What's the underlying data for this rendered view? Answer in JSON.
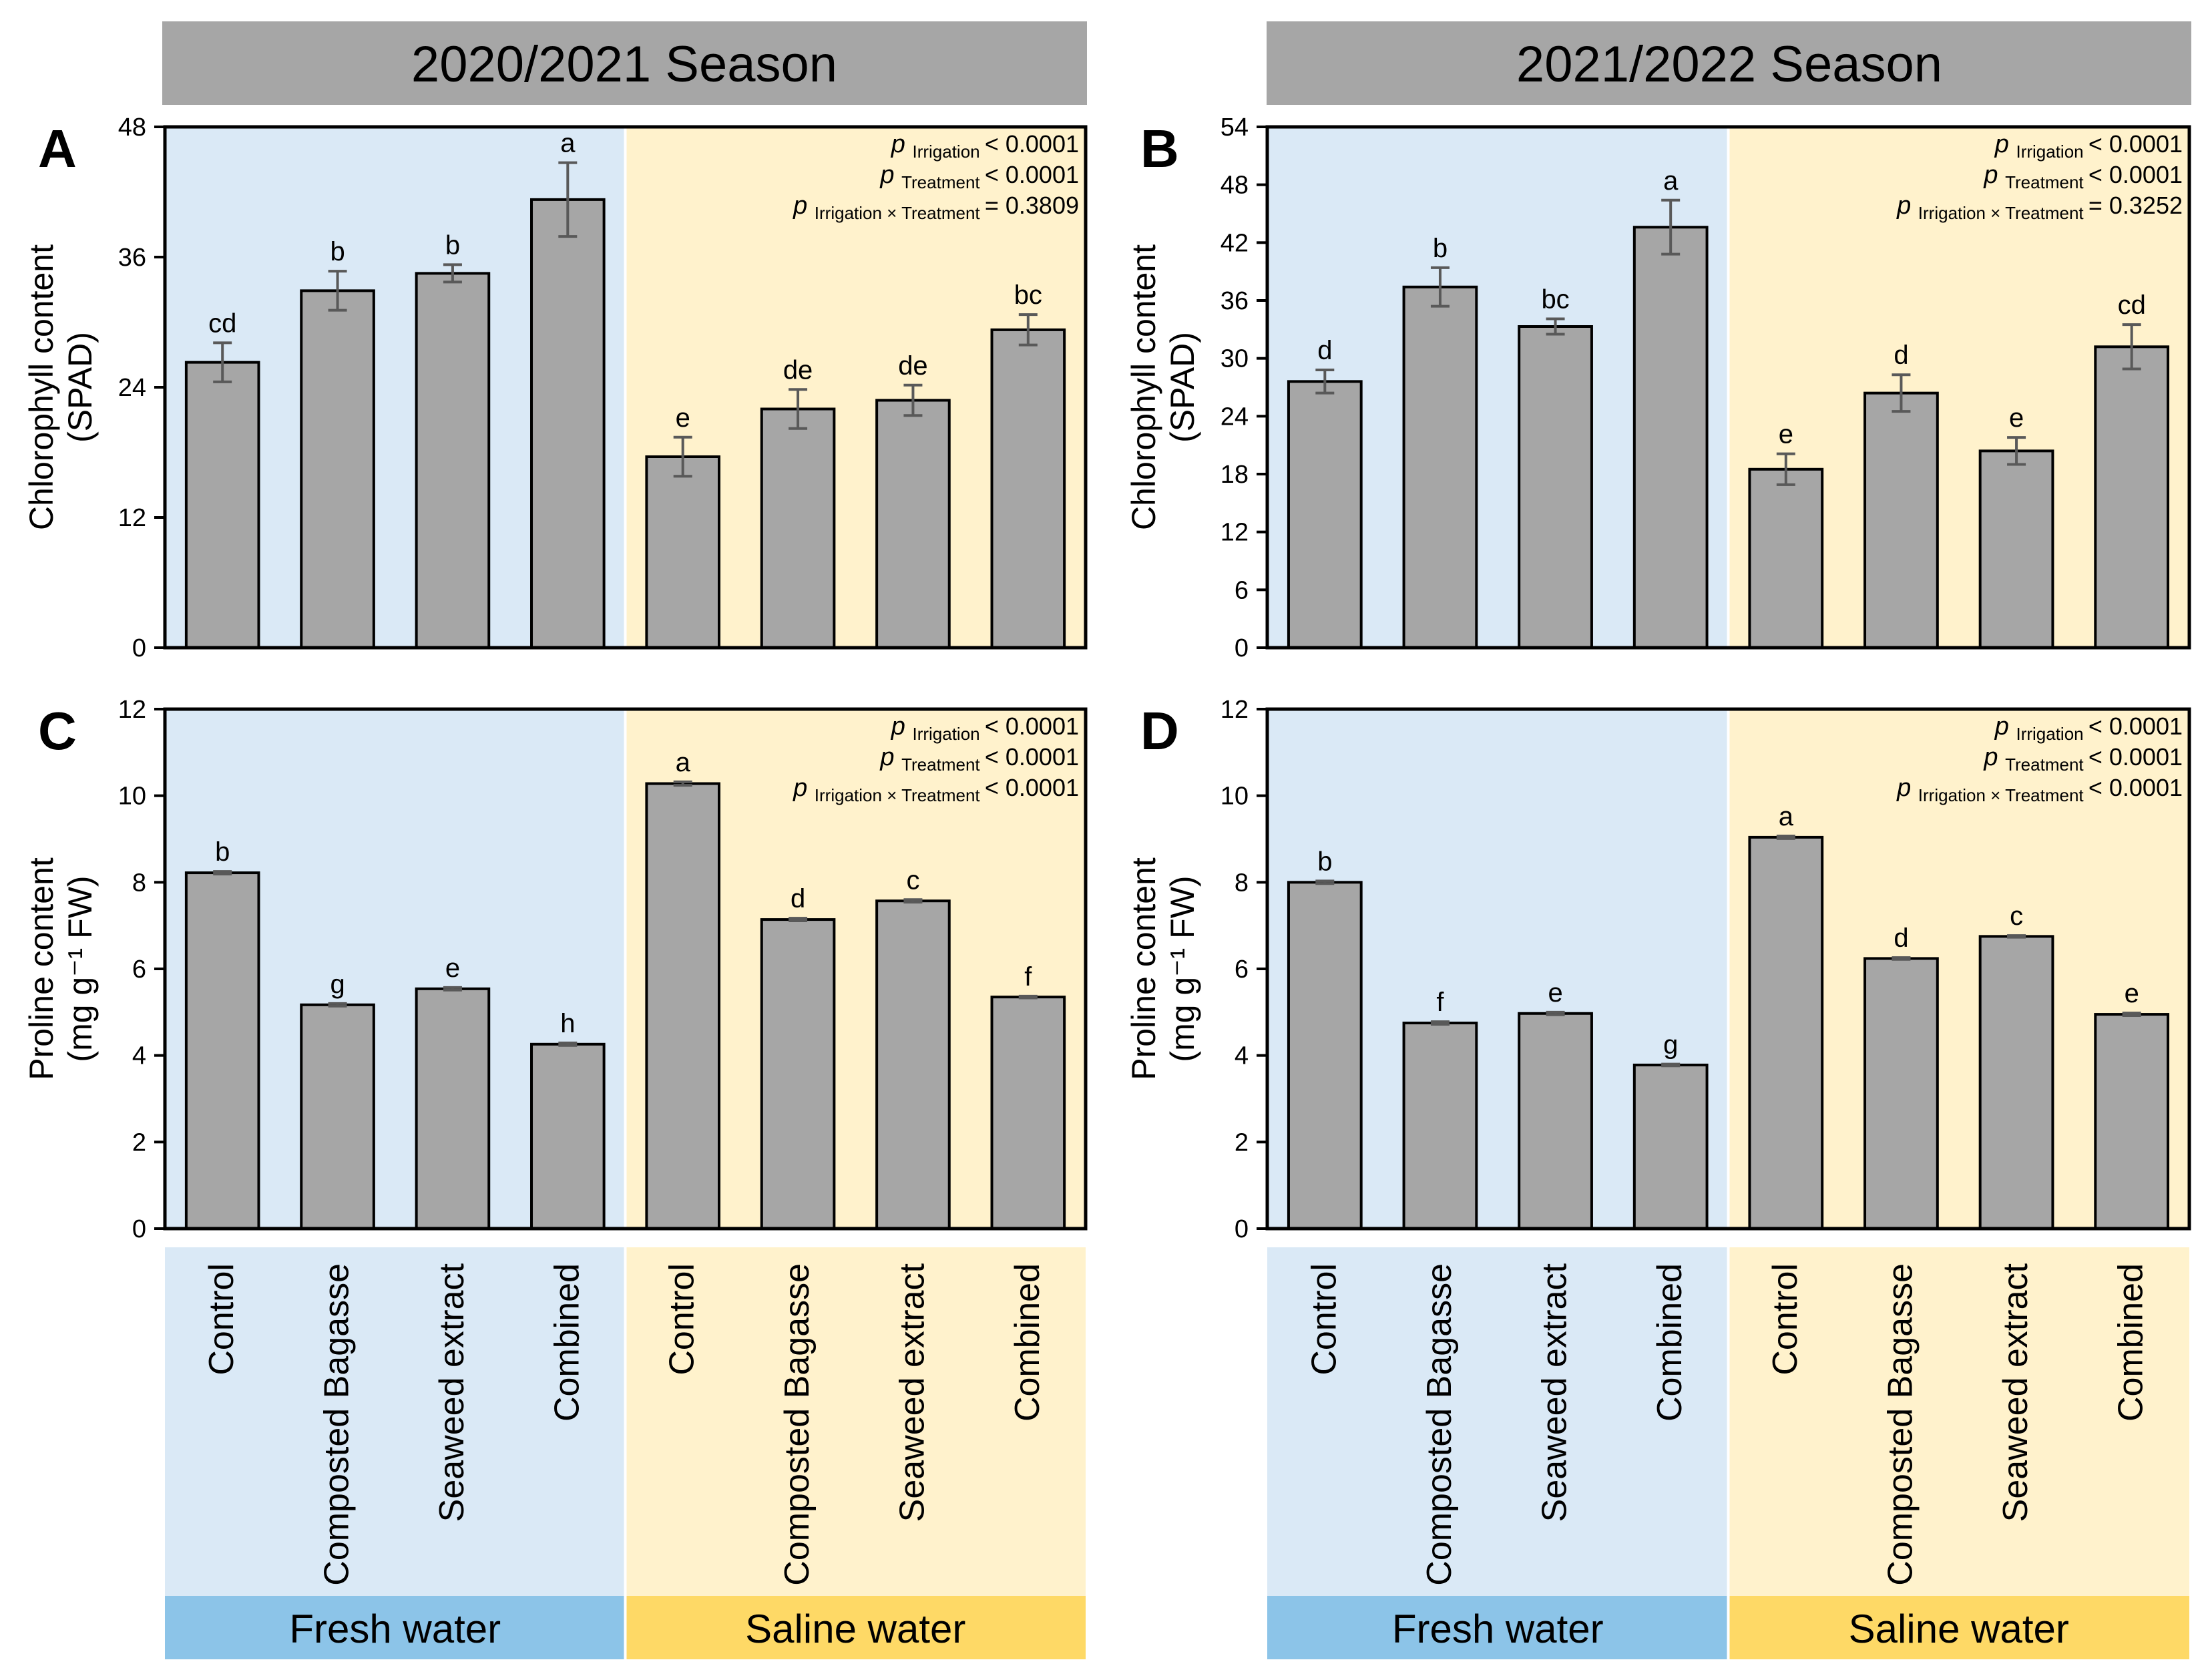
{
  "colors": {
    "fresh_bg": "#dae9f6",
    "saline_bg": "#fff2cc",
    "fresh_band": "#8cc4e8",
    "saline_band": "#fed966",
    "season_band": "#a6a6a6",
    "bar_fill": "#a6a6a6",
    "bar_stroke": "#000000",
    "error_bar": "#595959"
  },
  "seasons": [
    "2020/2021 Season",
    "2021/2022 Season"
  ],
  "x_categories": [
    "Control",
    "Composted Bagasse",
    "Seaweed extract",
    "Combined",
    "Control",
    "Composted Bagasse",
    "Seaweed extract",
    "Combined"
  ],
  "groups": [
    "Fresh water",
    "Saline water"
  ],
  "stats_label": {
    "p": "p",
    "irrigation": "Irrigation",
    "treatment": "Treatment",
    "interaction": "Irrigation × Treatment"
  },
  "chart_data": [
    {
      "type": "bar",
      "panel": "A",
      "season": "2020/2021 Season",
      "ylabel_line1": "Chlorophyll content",
      "ylabel_line2": "(SPAD)",
      "ylim": [
        0,
        48
      ],
      "yticks": [
        0,
        12,
        24,
        36,
        48
      ],
      "categories": [
        "Control",
        "Composted Bagasse",
        "Seaweed extract",
        "Combined",
        "Control",
        "Composted Bagasse",
        "Seaweed extract",
        "Combined"
      ],
      "values": [
        26.3,
        32.9,
        34.5,
        41.3,
        17.6,
        22.0,
        22.8,
        29.3
      ],
      "errors": [
        1.8,
        1.8,
        0.8,
        3.4,
        1.8,
        1.8,
        1.4,
        1.4
      ],
      "letters": [
        "cd",
        "b",
        "b",
        "a",
        "e",
        "de",
        "de",
        "bc"
      ],
      "stats": [
        {
          "term": "irrigation",
          "value": "< 0.0001"
        },
        {
          "term": "treatment",
          "value": "< 0.0001"
        },
        {
          "term": "interaction",
          "value": "= 0.3809"
        }
      ]
    },
    {
      "type": "bar",
      "panel": "B",
      "season": "2021/2022 Season",
      "ylabel_line1": "Chlorophyll content",
      "ylabel_line2": "(SPAD)",
      "ylim": [
        0,
        54
      ],
      "yticks": [
        0,
        6,
        12,
        18,
        24,
        30,
        36,
        42,
        48,
        54
      ],
      "categories": [
        "Control",
        "Composted Bagasse",
        "Seaweed extract",
        "Combined",
        "Control",
        "Composted Bagasse",
        "Seaweed extract",
        "Combined"
      ],
      "values": [
        27.6,
        37.4,
        33.3,
        43.6,
        18.5,
        26.4,
        20.4,
        31.2
      ],
      "errors": [
        1.2,
        2.0,
        0.8,
        2.8,
        1.6,
        1.9,
        1.4,
        2.3
      ],
      "letters": [
        "d",
        "b",
        "bc",
        "a",
        "e",
        "d",
        "e",
        "cd"
      ],
      "stats": [
        {
          "term": "irrigation",
          "value": "< 0.0001"
        },
        {
          "term": "treatment",
          "value": "< 0.0001"
        },
        {
          "term": "interaction",
          "value": "= 0.3252"
        }
      ]
    },
    {
      "type": "bar",
      "panel": "C",
      "season": "2020/2021 Season",
      "ylabel_line1": "Proline content",
      "ylabel_line2": "(mg g⁻¹ FW)",
      "ylim": [
        0,
        12
      ],
      "yticks": [
        0,
        2,
        4,
        6,
        8,
        10,
        12
      ],
      "categories": [
        "Control",
        "Composted Bagasse",
        "Seaweed extract",
        "Combined",
        "Control",
        "Composted Bagasse",
        "Seaweed extract",
        "Combined"
      ],
      "values": [
        8.22,
        5.17,
        5.54,
        4.26,
        10.28,
        7.14,
        7.57,
        5.35
      ],
      "errors": [
        0.03,
        0.03,
        0.03,
        0.03,
        0.04,
        0.03,
        0.03,
        0.02
      ],
      "letters": [
        "b",
        "g",
        "e",
        "h",
        "a",
        "d",
        "c",
        "f"
      ],
      "stats": [
        {
          "term": "irrigation",
          "value": "< 0.0001"
        },
        {
          "term": "treatment",
          "value": "< 0.0001"
        },
        {
          "term": "interaction",
          "value": "< 0.0001"
        }
      ]
    },
    {
      "type": "bar",
      "panel": "D",
      "season": "2021/2022 Season",
      "ylabel_line1": "Proline content",
      "ylabel_line2": "(mg g⁻¹ FW)",
      "ylim": [
        0,
        12
      ],
      "yticks": [
        0,
        2,
        4,
        6,
        8,
        10,
        12
      ],
      "categories": [
        "Control",
        "Composted Bagasse",
        "Seaweed extract",
        "Combined",
        "Control",
        "Composted Bagasse",
        "Seaweed extract",
        "Combined"
      ],
      "values": [
        8.0,
        4.75,
        4.97,
        3.78,
        9.04,
        6.24,
        6.75,
        4.95
      ],
      "errors": [
        0.03,
        0.03,
        0.03,
        0.02,
        0.03,
        0.02,
        0.02,
        0.03
      ],
      "letters": [
        "b",
        "f",
        "e",
        "g",
        "a",
        "d",
        "c",
        "e"
      ],
      "stats": [
        {
          "term": "irrigation",
          "value": "< 0.0001"
        },
        {
          "term": "treatment",
          "value": "< 0.0001"
        },
        {
          "term": "interaction",
          "value": "< 0.0001"
        }
      ]
    }
  ]
}
